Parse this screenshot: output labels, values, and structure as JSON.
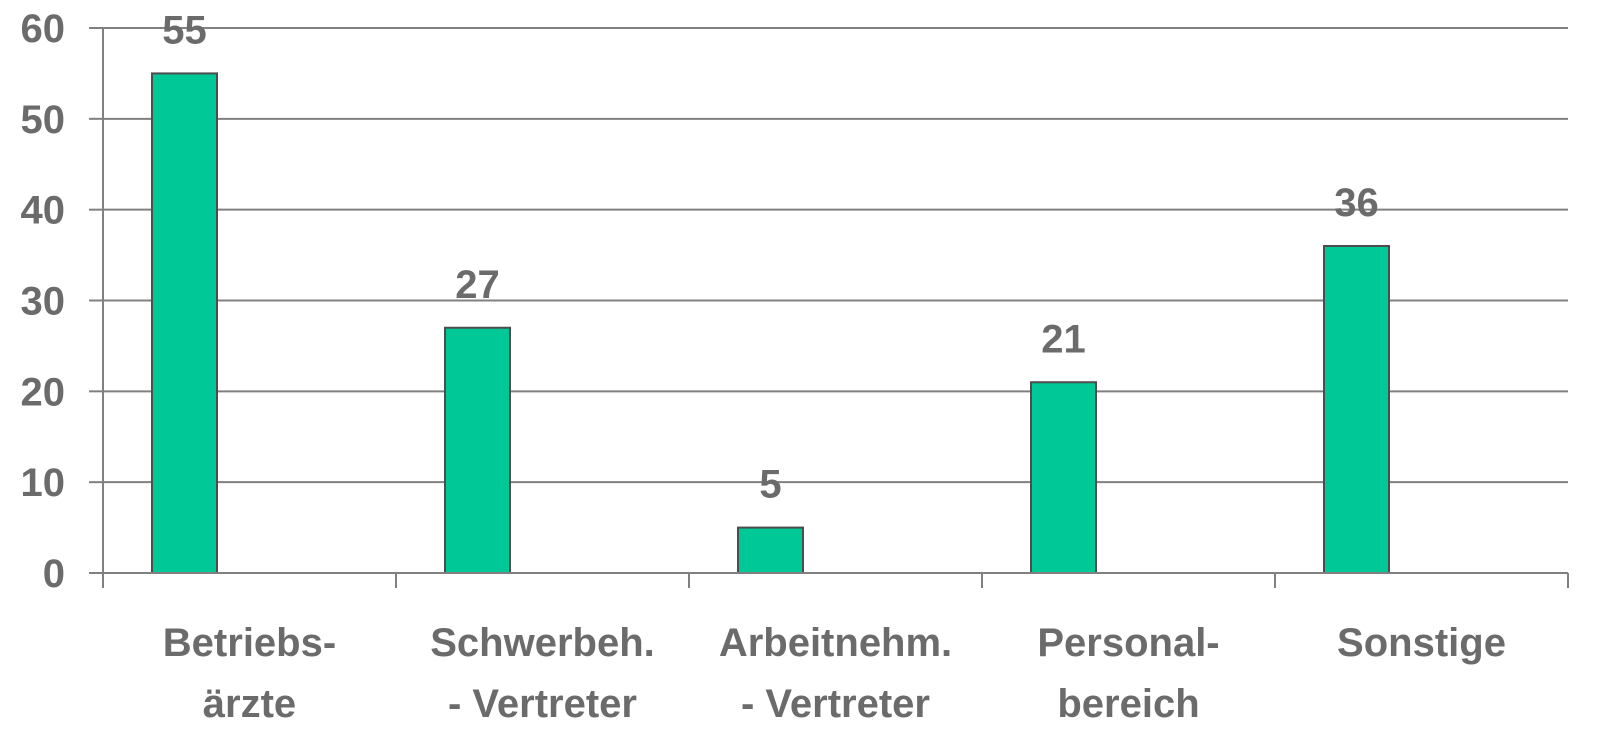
{
  "chart_data": {
    "type": "bar",
    "categories": [
      [
        "Betriebs-",
        "ärzte"
      ],
      [
        "Schwerbeh.",
        "- Vertreter"
      ],
      [
        "Arbeitnehm.",
        "- Vertreter"
      ],
      [
        "Personal-",
        "bereich"
      ],
      [
        "Sonstige"
      ]
    ],
    "values": [
      55,
      27,
      5,
      21,
      36
    ],
    "data_labels": [
      "55",
      "27",
      "5",
      "21",
      "36"
    ],
    "yticks": [
      "0",
      "10",
      "20",
      "30",
      "40",
      "50",
      "60"
    ],
    "ylim": [
      0,
      60
    ],
    "grid": true,
    "legend": false,
    "title": "",
    "xlabel": "",
    "ylabel": "",
    "colors": {
      "bar_fill": "#00c896",
      "bar_stroke": "#4d4d4d",
      "grid": "#808080",
      "axis": "#808080",
      "text": "#6b6b6b"
    }
  }
}
